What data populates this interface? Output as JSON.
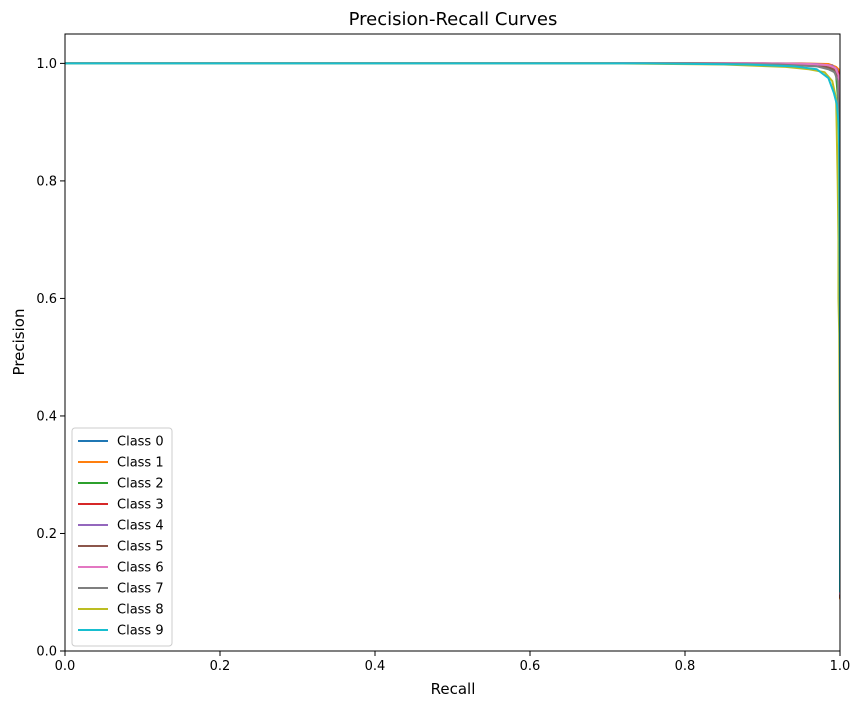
{
  "chart_data": {
    "type": "line",
    "title": "Precision-Recall Curves",
    "xlabel": "Recall",
    "ylabel": "Precision",
    "xlim": [
      0.0,
      1.0
    ],
    "ylim": [
      0.0,
      1.05
    ],
    "xticks": [
      "0.0",
      "0.2",
      "0.4",
      "0.6",
      "0.8",
      "1.0"
    ],
    "yticks": [
      "0.0",
      "0.2",
      "0.4",
      "0.6",
      "0.8",
      "1.0"
    ],
    "grid": false,
    "legend_position": "lower-left",
    "series": [
      {
        "name": "Class 0",
        "color": "#1f77b4",
        "x": [
          0,
          0.9,
          0.97,
          0.99,
          0.995,
          0.998,
          0.999,
          1.0,
          1.0
        ],
        "y": [
          1.0,
          1.0,
          0.999,
          0.997,
          0.99,
          0.96,
          0.85,
          0.4,
          0.098
        ]
      },
      {
        "name": "Class 1",
        "color": "#ff7f0e",
        "x": [
          0,
          0.95,
          0.985,
          0.995,
          0.998,
          0.999,
          1.0,
          1.0
        ],
        "y": [
          1.0,
          1.0,
          0.999,
          0.994,
          0.99,
          0.985,
          0.9,
          0.088
        ]
      },
      {
        "name": "Class 2",
        "color": "#2ca02c",
        "x": [
          0,
          0.85,
          0.94,
          0.975,
          0.99,
          0.995,
          0.998,
          0.999,
          1.0,
          1.0
        ],
        "y": [
          1.0,
          1.0,
          0.998,
          0.996,
          0.99,
          0.98,
          0.93,
          0.87,
          0.5,
          0.103
        ]
      },
      {
        "name": "Class 3",
        "color": "#d62728",
        "x": [
          0,
          0.9,
          0.96,
          0.985,
          0.995,
          0.998,
          0.999,
          1.0,
          1.0
        ],
        "y": [
          1.0,
          1.0,
          0.999,
          0.997,
          0.99,
          0.985,
          0.97,
          0.5,
          0.1
        ]
      },
      {
        "name": "Class 4",
        "color": "#9467bd",
        "x": [
          0,
          0.92,
          0.97,
          0.99,
          0.996,
          0.999,
          1.0,
          1.0
        ],
        "y": [
          1.0,
          1.0,
          0.999,
          0.996,
          0.99,
          0.96,
          0.5,
          0.098
        ]
      },
      {
        "name": "Class 5",
        "color": "#8c564b",
        "x": [
          0,
          0.88,
          0.95,
          0.98,
          0.992,
          0.997,
          0.999,
          1.0,
          1.0
        ],
        "y": [
          1.0,
          1.0,
          0.998,
          0.995,
          0.99,
          0.98,
          0.95,
          0.45,
          0.09
        ]
      },
      {
        "name": "Class 6",
        "color": "#e377c2",
        "x": [
          0,
          0.9,
          0.96,
          0.985,
          0.994,
          0.998,
          0.999,
          1.0,
          1.0
        ],
        "y": [
          1.0,
          1.0,
          0.999,
          0.997,
          0.992,
          0.98,
          0.95,
          0.5,
          0.096
        ]
      },
      {
        "name": "Class 7",
        "color": "#7f7f7f",
        "x": [
          0,
          0.8,
          0.92,
          0.97,
          0.985,
          0.993,
          0.997,
          0.999,
          1.0,
          1.0
        ],
        "y": [
          1.0,
          1.0,
          0.998,
          0.995,
          0.99,
          0.985,
          0.97,
          0.9,
          0.5,
          0.1
        ]
      },
      {
        "name": "Class 8",
        "color": "#bcbd22",
        "x": [
          0,
          0.7,
          0.85,
          0.93,
          0.96,
          0.98,
          0.99,
          0.995,
          0.996,
          0.997,
          0.998,
          0.998,
          0.999,
          1.0,
          1.0
        ],
        "y": [
          1.0,
          1.0,
          0.998,
          0.994,
          0.99,
          0.985,
          0.97,
          0.94,
          0.87,
          0.8,
          0.7,
          0.6,
          0.54,
          0.3,
          0.1
        ]
      },
      {
        "name": "Class 9",
        "color": "#17becf",
        "x": [
          0,
          0.75,
          0.88,
          0.94,
          0.97,
          0.985,
          0.992,
          0.996,
          0.998,
          0.999,
          1.0,
          1.0
        ],
        "y": [
          1.0,
          1.0,
          0.998,
          0.995,
          0.99,
          0.975,
          0.95,
          0.93,
          0.9,
          0.85,
          0.5,
          0.1
        ]
      }
    ]
  }
}
